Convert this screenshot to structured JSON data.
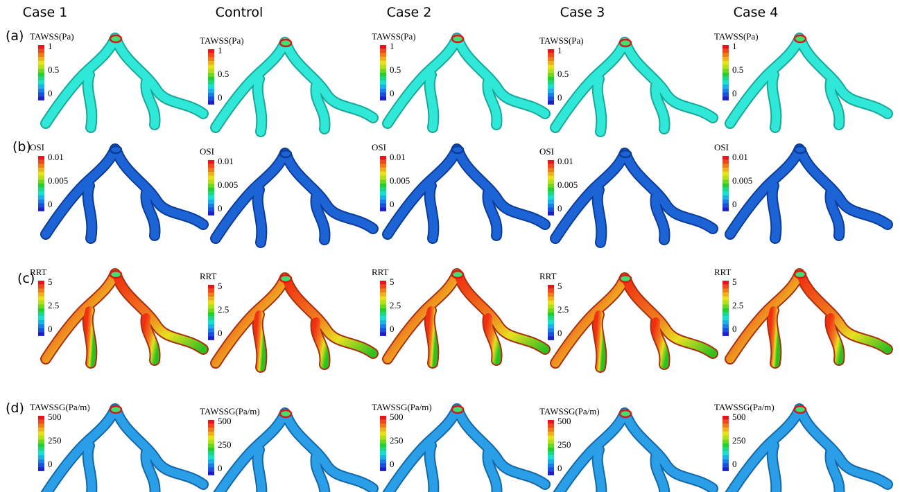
{
  "columns": [
    "Case 1",
    "Control",
    "Case 2",
    "Case 3",
    "Case 4"
  ],
  "rows": [
    {
      "label": "(a)",
      "colorbar": {
        "title": "TAWSS(Pa)",
        "ticks": [
          "1",
          "0.5",
          "0"
        ]
      }
    },
    {
      "label": "(b)",
      "colorbar": {
        "title": "OSI",
        "ticks": [
          "0.01",
          "0.005",
          "0"
        ]
      }
    },
    {
      "label": "(c)",
      "colorbar": {
        "title": "RRT",
        "ticks": [
          "5",
          "2.5",
          "0"
        ]
      }
    },
    {
      "label": "(d)",
      "colorbar": {
        "title": "TAWSSG(Pa/m)",
        "ticks": [
          "500",
          "250",
          "0"
        ]
      }
    }
  ]
}
